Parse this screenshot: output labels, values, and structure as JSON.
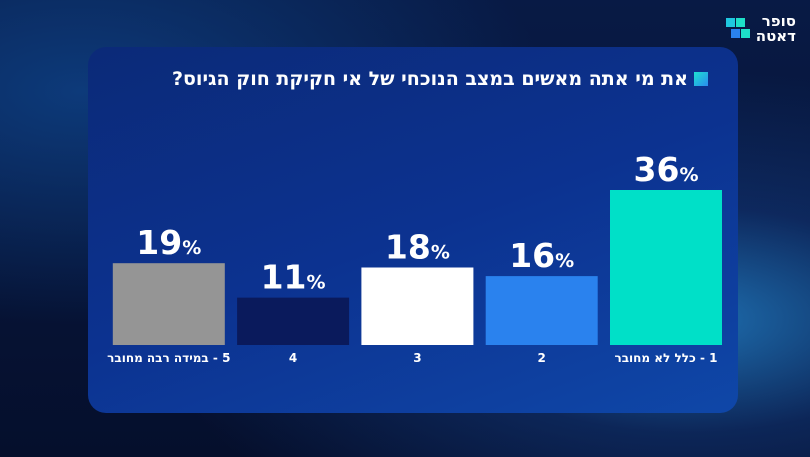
{
  "brand": {
    "line1": "סופר",
    "line2": "דאטה"
  },
  "chart_data": {
    "type": "bar",
    "title": "את מי אתה מאשים במצב הנוכחי של אי חקיקת חוק הגיוס?",
    "categories": [
      "1 - כלל לא מחובר",
      "2",
      "3",
      "4",
      "5 - במידה רבה מחובר"
    ],
    "values": [
      36,
      16,
      18,
      11,
      19
    ],
    "value_suffix": "%",
    "colors": [
      "#00e0c8",
      "#2a82ee",
      "#ffffff",
      "#0a1a5c",
      "#959595"
    ],
    "order": "right-to-left",
    "ylim": [
      0,
      40
    ],
    "grid": false
  }
}
